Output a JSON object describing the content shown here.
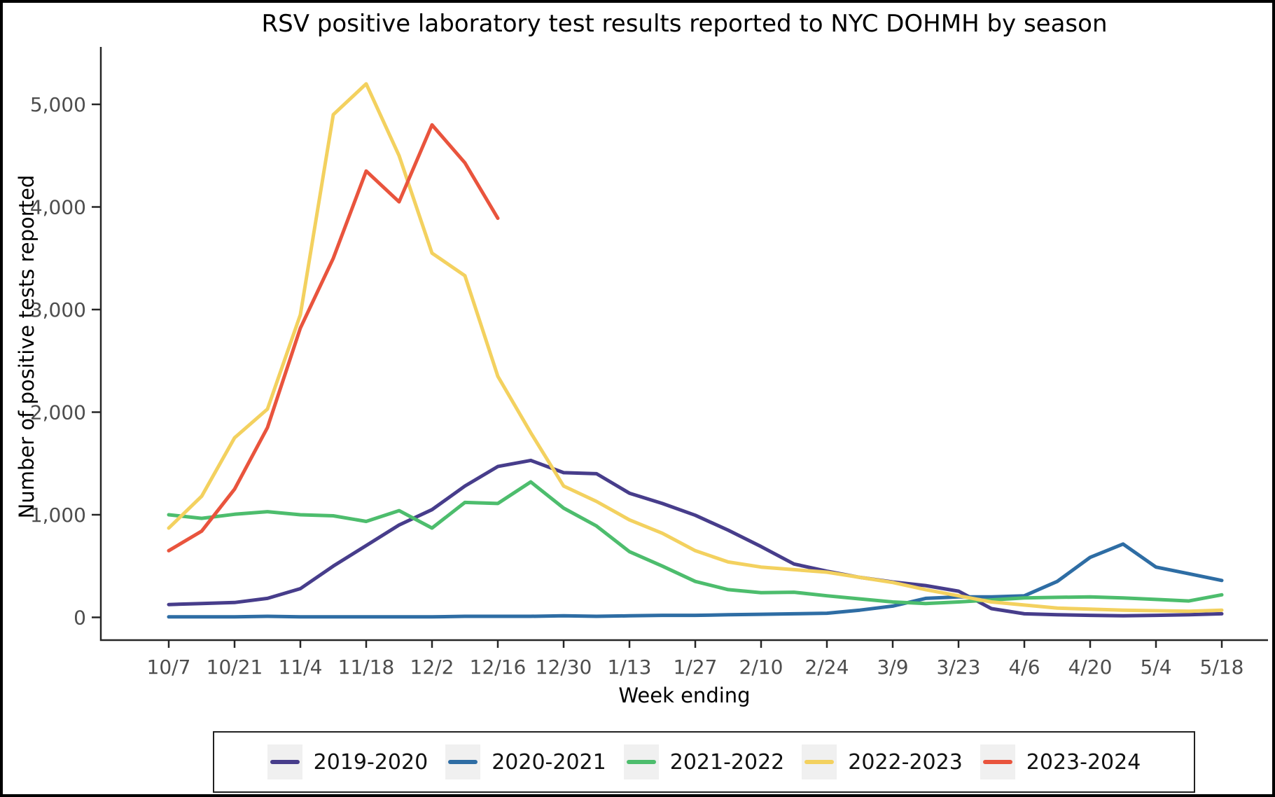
{
  "chart_data": {
    "type": "line",
    "title": "RSV positive laboratory test results reported to NYC DOHMH by season",
    "xlabel": "Week ending",
    "ylabel": "Number of positive tests reported",
    "x": [
      "10/7",
      "10/14",
      "10/21",
      "10/28",
      "11/4",
      "11/11",
      "11/18",
      "11/25",
      "12/2",
      "12/9",
      "12/16",
      "12/23",
      "12/30",
      "1/6",
      "1/13",
      "1/20",
      "1/27",
      "2/3",
      "2/10",
      "2/17",
      "2/24",
      "3/2",
      "3/9",
      "3/16",
      "3/23",
      "3/30",
      "4/6",
      "4/13",
      "4/20",
      "4/27",
      "5/4",
      "5/11",
      "5/18"
    ],
    "x_tick_labels": [
      "10/7",
      "10/21",
      "11/4",
      "11/18",
      "12/2",
      "12/16",
      "12/30",
      "1/13",
      "1/27",
      "2/10",
      "2/24",
      "3/9",
      "3/23",
      "4/6",
      "4/20",
      "5/4",
      "5/18"
    ],
    "y_ticks": [
      0,
      1000,
      2000,
      3000,
      4000,
      5000
    ],
    "y_tick_labels": [
      "0",
      "1,000",
      "2,000",
      "3,000",
      "4,000",
      "5,000"
    ],
    "ylim": [
      0,
      5560
    ],
    "grid": false,
    "legend_position": "bottom",
    "series": [
      {
        "name": "2019-2020",
        "color": "#473d8b",
        "values": [
          125,
          135,
          145,
          185,
          280,
          500,
          700,
          900,
          1050,
          1280,
          1470,
          1530,
          1410,
          1400,
          1210,
          1110,
          995,
          850,
          690,
          520,
          450,
          390,
          345,
          310,
          255,
          85,
          35,
          25,
          20,
          15,
          20,
          25,
          35
        ]
      },
      {
        "name": "2020-2021",
        "color": "#2e6da4",
        "values": [
          5,
          5,
          5,
          10,
          5,
          5,
          5,
          5,
          5,
          10,
          10,
          10,
          15,
          10,
          15,
          20,
          20,
          25,
          30,
          35,
          40,
          70,
          110,
          185,
          200,
          200,
          210,
          350,
          585,
          715,
          490,
          425,
          360
        ]
      },
      {
        "name": "2021-2022",
        "color": "#4dbd6d",
        "values": [
          1000,
          965,
          1005,
          1030,
          1000,
          990,
          935,
          1040,
          870,
          1120,
          1110,
          1320,
          1065,
          890,
          640,
          500,
          350,
          270,
          240,
          245,
          210,
          180,
          150,
          135,
          150,
          170,
          190,
          195,
          200,
          190,
          175,
          160,
          220
        ]
      },
      {
        "name": "2022-2023",
        "color": "#f3d15f",
        "values": [
          870,
          1180,
          1750,
          2030,
          2950,
          4900,
          5200,
          4500,
          3550,
          3330,
          2350,
          1800,
          1280,
          1130,
          950,
          820,
          650,
          540,
          490,
          465,
          440,
          390,
          340,
          270,
          210,
          150,
          120,
          90,
          80,
          70,
          65,
          60,
          70
        ]
      },
      {
        "name": "2023-2024",
        "color": "#e9543d",
        "values": [
          650,
          840,
          1250,
          1850,
          2820,
          3500,
          4350,
          4050,
          4800,
          4430,
          3890
        ]
      }
    ]
  }
}
